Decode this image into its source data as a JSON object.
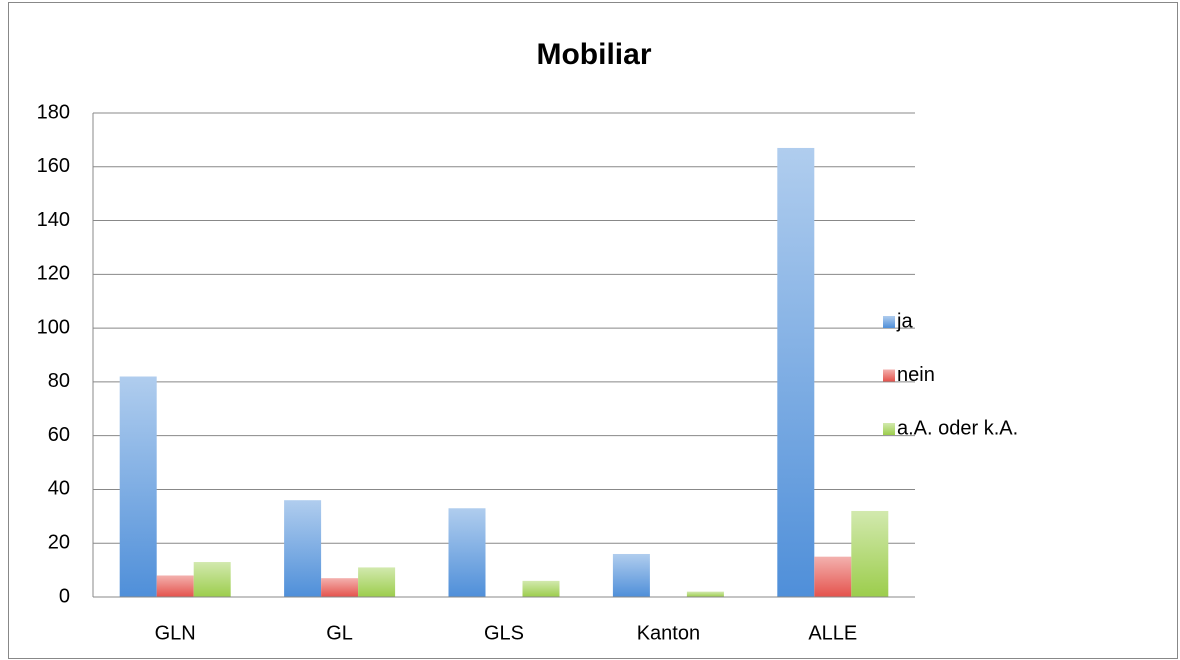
{
  "chart_data": {
    "type": "bar",
    "title": "Mobiliar",
    "categories": [
      "GLN",
      "GL",
      "GLS",
      "Kanton",
      "ALLE"
    ],
    "series": [
      {
        "name": "ja",
        "color": "#4f8fd9",
        "values": [
          82,
          36,
          33,
          16,
          167
        ]
      },
      {
        "name": "nein",
        "color": "#e4524c",
        "values": [
          8,
          7,
          0,
          0,
          15
        ]
      },
      {
        "name": "a.A. oder k.A.",
        "color": "#9ccd4c",
        "values": [
          13,
          11,
          6,
          2,
          32
        ]
      }
    ],
    "ylim": [
      0,
      180
    ],
    "yticks": [
      0,
      20,
      40,
      60,
      80,
      100,
      120,
      140,
      160,
      180
    ],
    "grid": true,
    "legend": "right"
  }
}
